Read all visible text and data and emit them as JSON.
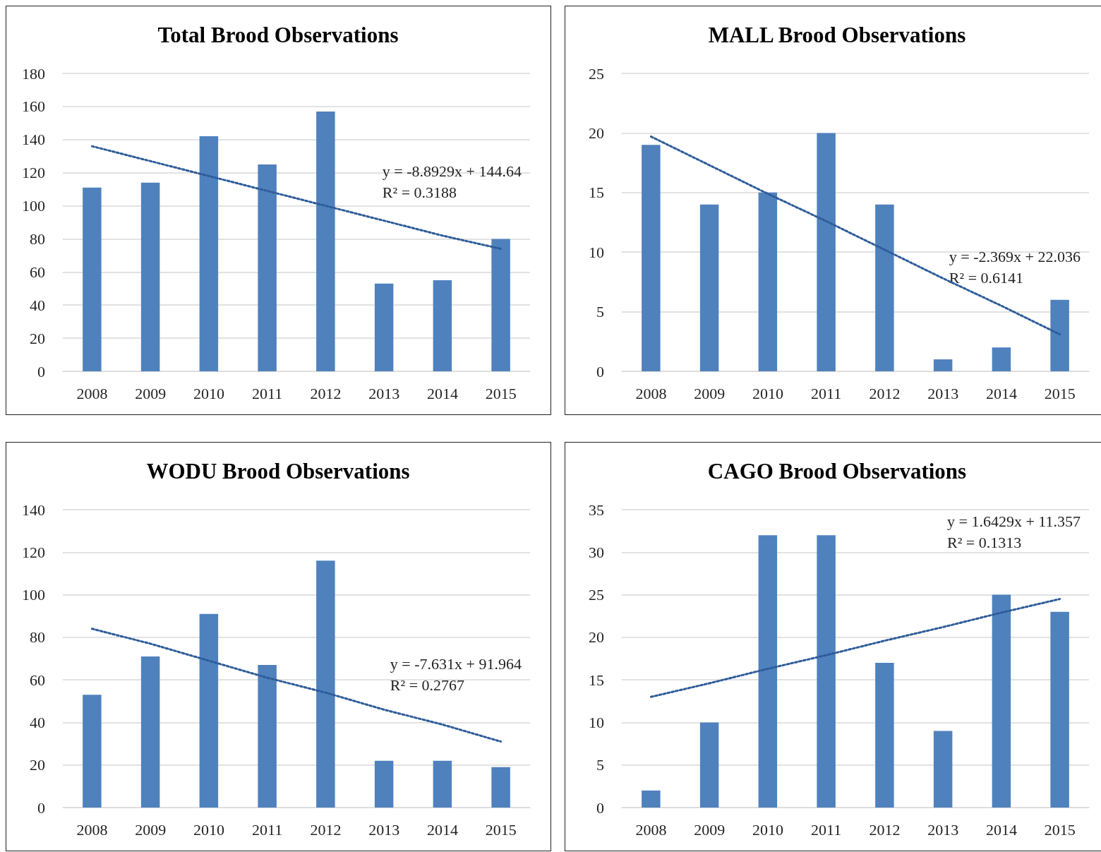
{
  "chart_data": [
    {
      "type": "bar",
      "title": "Total Brood Observations",
      "categories": [
        "2008",
        "2009",
        "2010",
        "2011",
        "2012",
        "2013",
        "2014",
        "2015"
      ],
      "series": [
        {
          "color": "#4f81bd",
          "values": [
            111,
            114,
            142,
            125,
            157,
            53,
            55,
            80
          ]
        },
        {
          "type": "line",
          "color": "#2e5c99",
          "values": [
            136,
            127,
            118,
            109,
            100,
            91,
            82,
            74
          ],
          "line_style": "dotted",
          "marker": "none"
        }
      ],
      "ylim": [
        0,
        180
      ],
      "yticks": [
        0,
        20,
        40,
        60,
        80,
        100,
        120,
        140,
        160,
        180
      ],
      "grid": "y",
      "annotations": [
        "y = -8.8929x + 144.64",
        "R² = 0.3188"
      ]
    },
    {
      "type": "bar",
      "title": "MALL Brood Observations",
      "categories": [
        "2008",
        "2009",
        "2010",
        "2011",
        "2012",
        "2013",
        "2014",
        "2015"
      ],
      "series": [
        {
          "color": "#4f81bd",
          "values": [
            19,
            14,
            15,
            20,
            14,
            1,
            2,
            6
          ]
        },
        {
          "type": "line",
          "color": "#2e5c99",
          "values": [
            19.7,
            17.3,
            14.9,
            12.6,
            10.2,
            7.8,
            5.5,
            3.1
          ],
          "line_style": "dotted",
          "marker": "none"
        }
      ],
      "ylim": [
        0,
        25
      ],
      "yticks": [
        0,
        5,
        10,
        15,
        20,
        25
      ],
      "grid": "y",
      "annotations": [
        "y = -2.369x + 22.036",
        "R² = 0.6141"
      ]
    },
    {
      "type": "bar",
      "title": "WODU Brood Observations",
      "categories": [
        "2008",
        "2009",
        "2010",
        "2011",
        "2012",
        "2013",
        "2014",
        "2015"
      ],
      "series": [
        {
          "color": "#4f81bd",
          "values": [
            53,
            71,
            91,
            67,
            116,
            22,
            22,
            19
          ]
        },
        {
          "type": "line",
          "color": "#2e5c99",
          "values": [
            84,
            77,
            69,
            61,
            54,
            46,
            39,
            31
          ],
          "line_style": "dotted",
          "marker": "none"
        }
      ],
      "ylim": [
        0,
        140
      ],
      "yticks": [
        0,
        20,
        40,
        60,
        80,
        100,
        120,
        140
      ],
      "grid": "y",
      "annotations": [
        "y = -7.631x + 91.964",
        "R² = 0.2767"
      ]
    },
    {
      "type": "bar",
      "title": "CAGO Brood Observations",
      "categories": [
        "2008",
        "2009",
        "2010",
        "2011",
        "2012",
        "2013",
        "2014",
        "2015"
      ],
      "series": [
        {
          "color": "#4f81bd",
          "values": [
            2,
            10,
            32,
            32,
            17,
            9,
            25,
            23
          ]
        },
        {
          "type": "line",
          "color": "#2e5c99",
          "values": [
            13.0,
            14.6,
            16.3,
            17.9,
            19.6,
            21.2,
            22.9,
            24.5
          ],
          "line_style": "dotted",
          "marker": "none"
        }
      ],
      "ylim": [
        0,
        35
      ],
      "yticks": [
        0,
        5,
        10,
        15,
        20,
        25,
        30,
        35
      ],
      "grid": "y",
      "annotations": [
        "y = 1.6429x + 11.357",
        "R² = 0.1313"
      ]
    }
  ]
}
